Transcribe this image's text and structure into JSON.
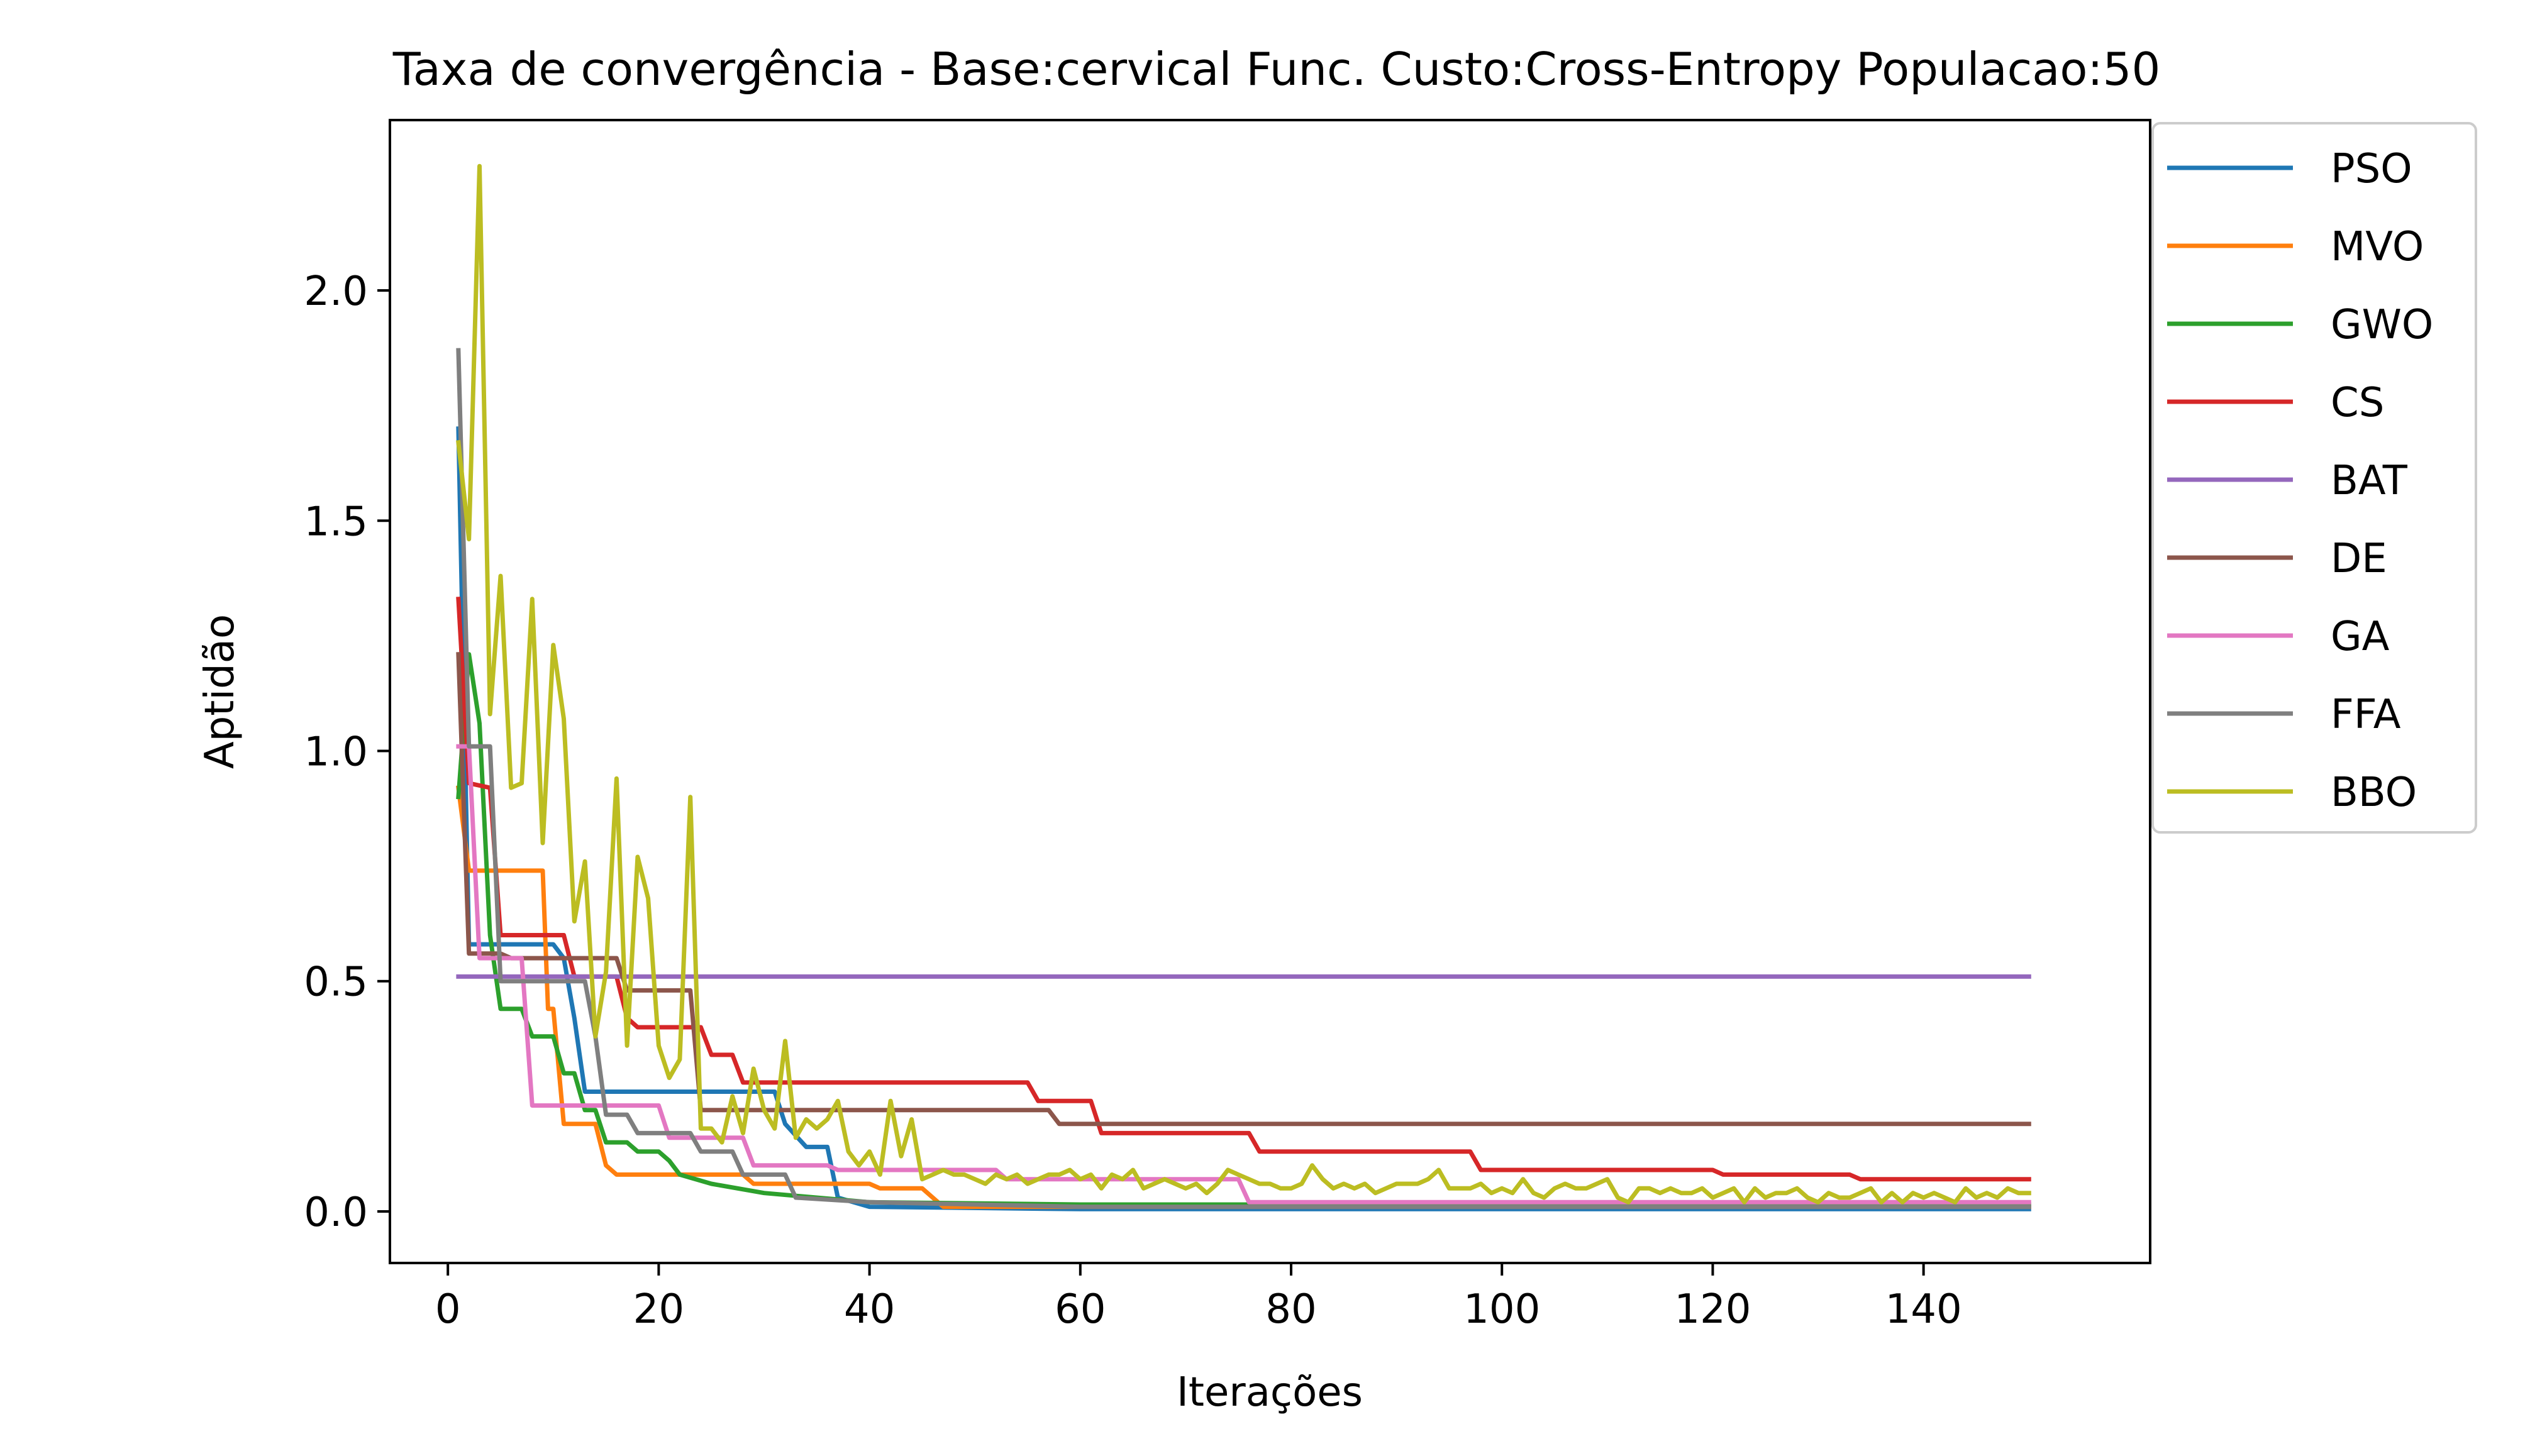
{
  "chart_data": {
    "type": "line",
    "title": "Taxa de convergência - Base:cervical Func. Custo:Cross-Entropy Populacao:50",
    "xlabel": "Iterações",
    "ylabel": "Aptidão",
    "xlim": [
      -5.5,
      161.5
    ],
    "ylim": [
      -0.112,
      2.37
    ],
    "xticks": [
      0,
      20,
      40,
      60,
      80,
      100,
      120,
      140
    ],
    "yticks": [
      0.0,
      0.5,
      1.0,
      1.5,
      2.0
    ],
    "xtick_labels": [
      "0",
      "20",
      "40",
      "60",
      "80",
      "100",
      "120",
      "140"
    ],
    "ytick_labels": [
      "0.0",
      "0.5",
      "1.0",
      "1.5",
      "2.0"
    ],
    "grid": false,
    "legend_position": "outside upper right",
    "series": [
      {
        "name": "PSO",
        "color": "#1f77b4",
        "points": [
          [
            1,
            1.7
          ],
          [
            2,
            0.58
          ],
          [
            10,
            0.58
          ],
          [
            11,
            0.55
          ],
          [
            12,
            0.42
          ],
          [
            13,
            0.26
          ],
          [
            31,
            0.26
          ],
          [
            32,
            0.19
          ],
          [
            34,
            0.14
          ],
          [
            36,
            0.14
          ],
          [
            37,
            0.03
          ],
          [
            40,
            0.01
          ],
          [
            60,
            0.005
          ],
          [
            150,
            0.005
          ]
        ]
      },
      {
        "name": "MVO",
        "color": "#ff7f0e",
        "points": [
          [
            1,
            0.92
          ],
          [
            2,
            0.74
          ],
          [
            9,
            0.74
          ],
          [
            9.5,
            0.44
          ],
          [
            10,
            0.44
          ],
          [
            11,
            0.19
          ],
          [
            14,
            0.19
          ],
          [
            15,
            0.1
          ],
          [
            16,
            0.08
          ],
          [
            28,
            0.08
          ],
          [
            29,
            0.06
          ],
          [
            40,
            0.06
          ],
          [
            41,
            0.05
          ],
          [
            45,
            0.05
          ],
          [
            47,
            0.01
          ],
          [
            150,
            0.01
          ]
        ]
      },
      {
        "name": "GWO",
        "color": "#2ca02c",
        "points": [
          [
            1,
            0.9
          ],
          [
            2,
            1.21
          ],
          [
            3,
            1.06
          ],
          [
            4,
            0.6
          ],
          [
            5,
            0.44
          ],
          [
            7,
            0.44
          ],
          [
            8,
            0.38
          ],
          [
            10,
            0.38
          ],
          [
            11,
            0.3
          ],
          [
            12,
            0.3
          ],
          [
            13,
            0.22
          ],
          [
            14,
            0.22
          ],
          [
            15,
            0.15
          ],
          [
            17,
            0.15
          ],
          [
            18,
            0.13
          ],
          [
            20,
            0.13
          ],
          [
            21,
            0.11
          ],
          [
            22,
            0.08
          ],
          [
            25,
            0.06
          ],
          [
            30,
            0.04
          ],
          [
            40,
            0.02
          ],
          [
            60,
            0.015
          ],
          [
            150,
            0.015
          ]
        ]
      },
      {
        "name": "CS",
        "color": "#d62728",
        "points": [
          [
            1,
            1.33
          ],
          [
            2,
            0.93
          ],
          [
            4,
            0.92
          ],
          [
            5,
            0.6
          ],
          [
            11,
            0.6
          ],
          [
            12,
            0.51
          ],
          [
            16,
            0.51
          ],
          [
            17,
            0.42
          ],
          [
            18,
            0.4
          ],
          [
            24,
            0.4
          ],
          [
            25,
            0.34
          ],
          [
            27,
            0.34
          ],
          [
            28,
            0.28
          ],
          [
            55,
            0.28
          ],
          [
            56,
            0.24
          ],
          [
            61,
            0.24
          ],
          [
            62,
            0.17
          ],
          [
            76,
            0.17
          ],
          [
            77,
            0.13
          ],
          [
            97,
            0.13
          ],
          [
            98,
            0.09
          ],
          [
            120,
            0.09
          ],
          [
            121,
            0.08
          ],
          [
            133,
            0.08
          ],
          [
            134,
            0.07
          ],
          [
            150,
            0.07
          ]
        ]
      },
      {
        "name": "BAT",
        "color": "#9467bd",
        "points": [
          [
            1,
            0.51
          ],
          [
            150,
            0.51
          ]
        ]
      },
      {
        "name": "DE",
        "color": "#8c564b",
        "points": [
          [
            1,
            1.21
          ],
          [
            2,
            0.56
          ],
          [
            5,
            0.56
          ],
          [
            6,
            0.55
          ],
          [
            16,
            0.55
          ],
          [
            17,
            0.48
          ],
          [
            23,
            0.48
          ],
          [
            24,
            0.22
          ],
          [
            57,
            0.22
          ],
          [
            58,
            0.19
          ],
          [
            150,
            0.19
          ]
        ]
      },
      {
        "name": "GA",
        "color": "#e377c2",
        "points": [
          [
            1,
            1.01
          ],
          [
            2,
            1.01
          ],
          [
            3,
            0.55
          ],
          [
            7,
            0.55
          ],
          [
            8,
            0.23
          ],
          [
            20,
            0.23
          ],
          [
            21,
            0.16
          ],
          [
            28,
            0.16
          ],
          [
            29,
            0.1
          ],
          [
            36,
            0.1
          ],
          [
            37,
            0.09
          ],
          [
            52,
            0.09
          ],
          [
            53,
            0.07
          ],
          [
            75,
            0.07
          ],
          [
            76,
            0.02
          ],
          [
            150,
            0.02
          ]
        ]
      },
      {
        "name": "FFA",
        "color": "#7f7f7f",
        "points": [
          [
            1,
            1.87
          ],
          [
            2,
            1.01
          ],
          [
            4,
            1.01
          ],
          [
            5,
            0.5
          ],
          [
            13,
            0.5
          ],
          [
            14,
            0.38
          ],
          [
            15,
            0.21
          ],
          [
            17,
            0.21
          ],
          [
            18,
            0.17
          ],
          [
            23,
            0.17
          ],
          [
            24,
            0.13
          ],
          [
            27,
            0.13
          ],
          [
            28,
            0.08
          ],
          [
            32,
            0.08
          ],
          [
            33,
            0.03
          ],
          [
            40,
            0.02
          ],
          [
            60,
            0.01
          ],
          [
            150,
            0.01
          ]
        ]
      },
      {
        "name": "BBO",
        "color": "#bcbd22",
        "points": [
          [
            1,
            1.67
          ],
          [
            2,
            1.46
          ],
          [
            3,
            2.27
          ],
          [
            4,
            1.08
          ],
          [
            5,
            1.38
          ],
          [
            6,
            0.92
          ],
          [
            7,
            0.93
          ],
          [
            8,
            1.33
          ],
          [
            9,
            0.8
          ],
          [
            10,
            1.23
          ],
          [
            11,
            1.07
          ],
          [
            12,
            0.63
          ],
          [
            13,
            0.76
          ],
          [
            14,
            0.38
          ],
          [
            15,
            0.52
          ],
          [
            16,
            0.94
          ],
          [
            17,
            0.36
          ],
          [
            18,
            0.77
          ],
          [
            19,
            0.68
          ],
          [
            20,
            0.36
          ],
          [
            21,
            0.29
          ],
          [
            22,
            0.33
          ],
          [
            23,
            0.9
          ],
          [
            24,
            0.18
          ],
          [
            25,
            0.18
          ],
          [
            26,
            0.15
          ],
          [
            27,
            0.25
          ],
          [
            28,
            0.17
          ],
          [
            29,
            0.31
          ],
          [
            30,
            0.22
          ],
          [
            31,
            0.18
          ],
          [
            32,
            0.37
          ],
          [
            33,
            0.16
          ],
          [
            34,
            0.2
          ],
          [
            35,
            0.18
          ],
          [
            36,
            0.2
          ],
          [
            37,
            0.24
          ],
          [
            38,
            0.13
          ],
          [
            39,
            0.1
          ],
          [
            40,
            0.13
          ],
          [
            41,
            0.08
          ],
          [
            42,
            0.24
          ],
          [
            43,
            0.12
          ],
          [
            44,
            0.2
          ],
          [
            45,
            0.07
          ],
          [
            46,
            0.08
          ],
          [
            47,
            0.09
          ],
          [
            48,
            0.08
          ],
          [
            49,
            0.08
          ],
          [
            50,
            0.07
          ],
          [
            51,
            0.06
          ],
          [
            52,
            0.08
          ],
          [
            53,
            0.07
          ],
          [
            54,
            0.08
          ],
          [
            55,
            0.06
          ],
          [
            56,
            0.07
          ],
          [
            57,
            0.08
          ],
          [
            58,
            0.08
          ],
          [
            59,
            0.09
          ],
          [
            60,
            0.07
          ],
          [
            61,
            0.08
          ],
          [
            62,
            0.05
          ],
          [
            63,
            0.08
          ],
          [
            64,
            0.07
          ],
          [
            65,
            0.09
          ],
          [
            66,
            0.05
          ],
          [
            67,
            0.06
          ],
          [
            68,
            0.07
          ],
          [
            69,
            0.06
          ],
          [
            70,
            0.05
          ],
          [
            71,
            0.06
          ],
          [
            72,
            0.04
          ],
          [
            73,
            0.06
          ],
          [
            74,
            0.09
          ],
          [
            75,
            0.08
          ],
          [
            76,
            0.07
          ],
          [
            77,
            0.06
          ],
          [
            78,
            0.06
          ],
          [
            79,
            0.05
          ],
          [
            80,
            0.05
          ],
          [
            81,
            0.06
          ],
          [
            82,
            0.1
          ],
          [
            83,
            0.07
          ],
          [
            84,
            0.05
          ],
          [
            85,
            0.06
          ],
          [
            86,
            0.05
          ],
          [
            87,
            0.06
          ],
          [
            88,
            0.04
          ],
          [
            89,
            0.05
          ],
          [
            90,
            0.06
          ],
          [
            91,
            0.06
          ],
          [
            92,
            0.06
          ],
          [
            93,
            0.07
          ],
          [
            94,
            0.09
          ],
          [
            95,
            0.05
          ],
          [
            96,
            0.05
          ],
          [
            97,
            0.05
          ],
          [
            98,
            0.06
          ],
          [
            99,
            0.04
          ],
          [
            100,
            0.05
          ],
          [
            101,
            0.04
          ],
          [
            102,
            0.07
          ],
          [
            103,
            0.04
          ],
          [
            104,
            0.03
          ],
          [
            105,
            0.05
          ],
          [
            106,
            0.06
          ],
          [
            107,
            0.05
          ],
          [
            108,
            0.05
          ],
          [
            109,
            0.06
          ],
          [
            110,
            0.07
          ],
          [
            111,
            0.03
          ],
          [
            112,
            0.02
          ],
          [
            113,
            0.05
          ],
          [
            114,
            0.05
          ],
          [
            115,
            0.04
          ],
          [
            116,
            0.05
          ],
          [
            117,
            0.04
          ],
          [
            118,
            0.04
          ],
          [
            119,
            0.05
          ],
          [
            120,
            0.03
          ],
          [
            121,
            0.04
          ],
          [
            122,
            0.05
          ],
          [
            123,
            0.02
          ],
          [
            124,
            0.05
          ],
          [
            125,
            0.03
          ],
          [
            126,
            0.04
          ],
          [
            127,
            0.04
          ],
          [
            128,
            0.05
          ],
          [
            129,
            0.03
          ],
          [
            130,
            0.02
          ],
          [
            131,
            0.04
          ],
          [
            132,
            0.03
          ],
          [
            133,
            0.03
          ],
          [
            134,
            0.04
          ],
          [
            135,
            0.05
          ],
          [
            136,
            0.02
          ],
          [
            137,
            0.04
          ],
          [
            138,
            0.02
          ],
          [
            139,
            0.04
          ],
          [
            140,
            0.03
          ],
          [
            141,
            0.04
          ],
          [
            142,
            0.03
          ],
          [
            143,
            0.02
          ],
          [
            144,
            0.05
          ],
          [
            145,
            0.03
          ],
          [
            146,
            0.04
          ],
          [
            147,
            0.03
          ],
          [
            148,
            0.05
          ],
          [
            149,
            0.04
          ],
          [
            150,
            0.04
          ]
        ]
      }
    ]
  }
}
